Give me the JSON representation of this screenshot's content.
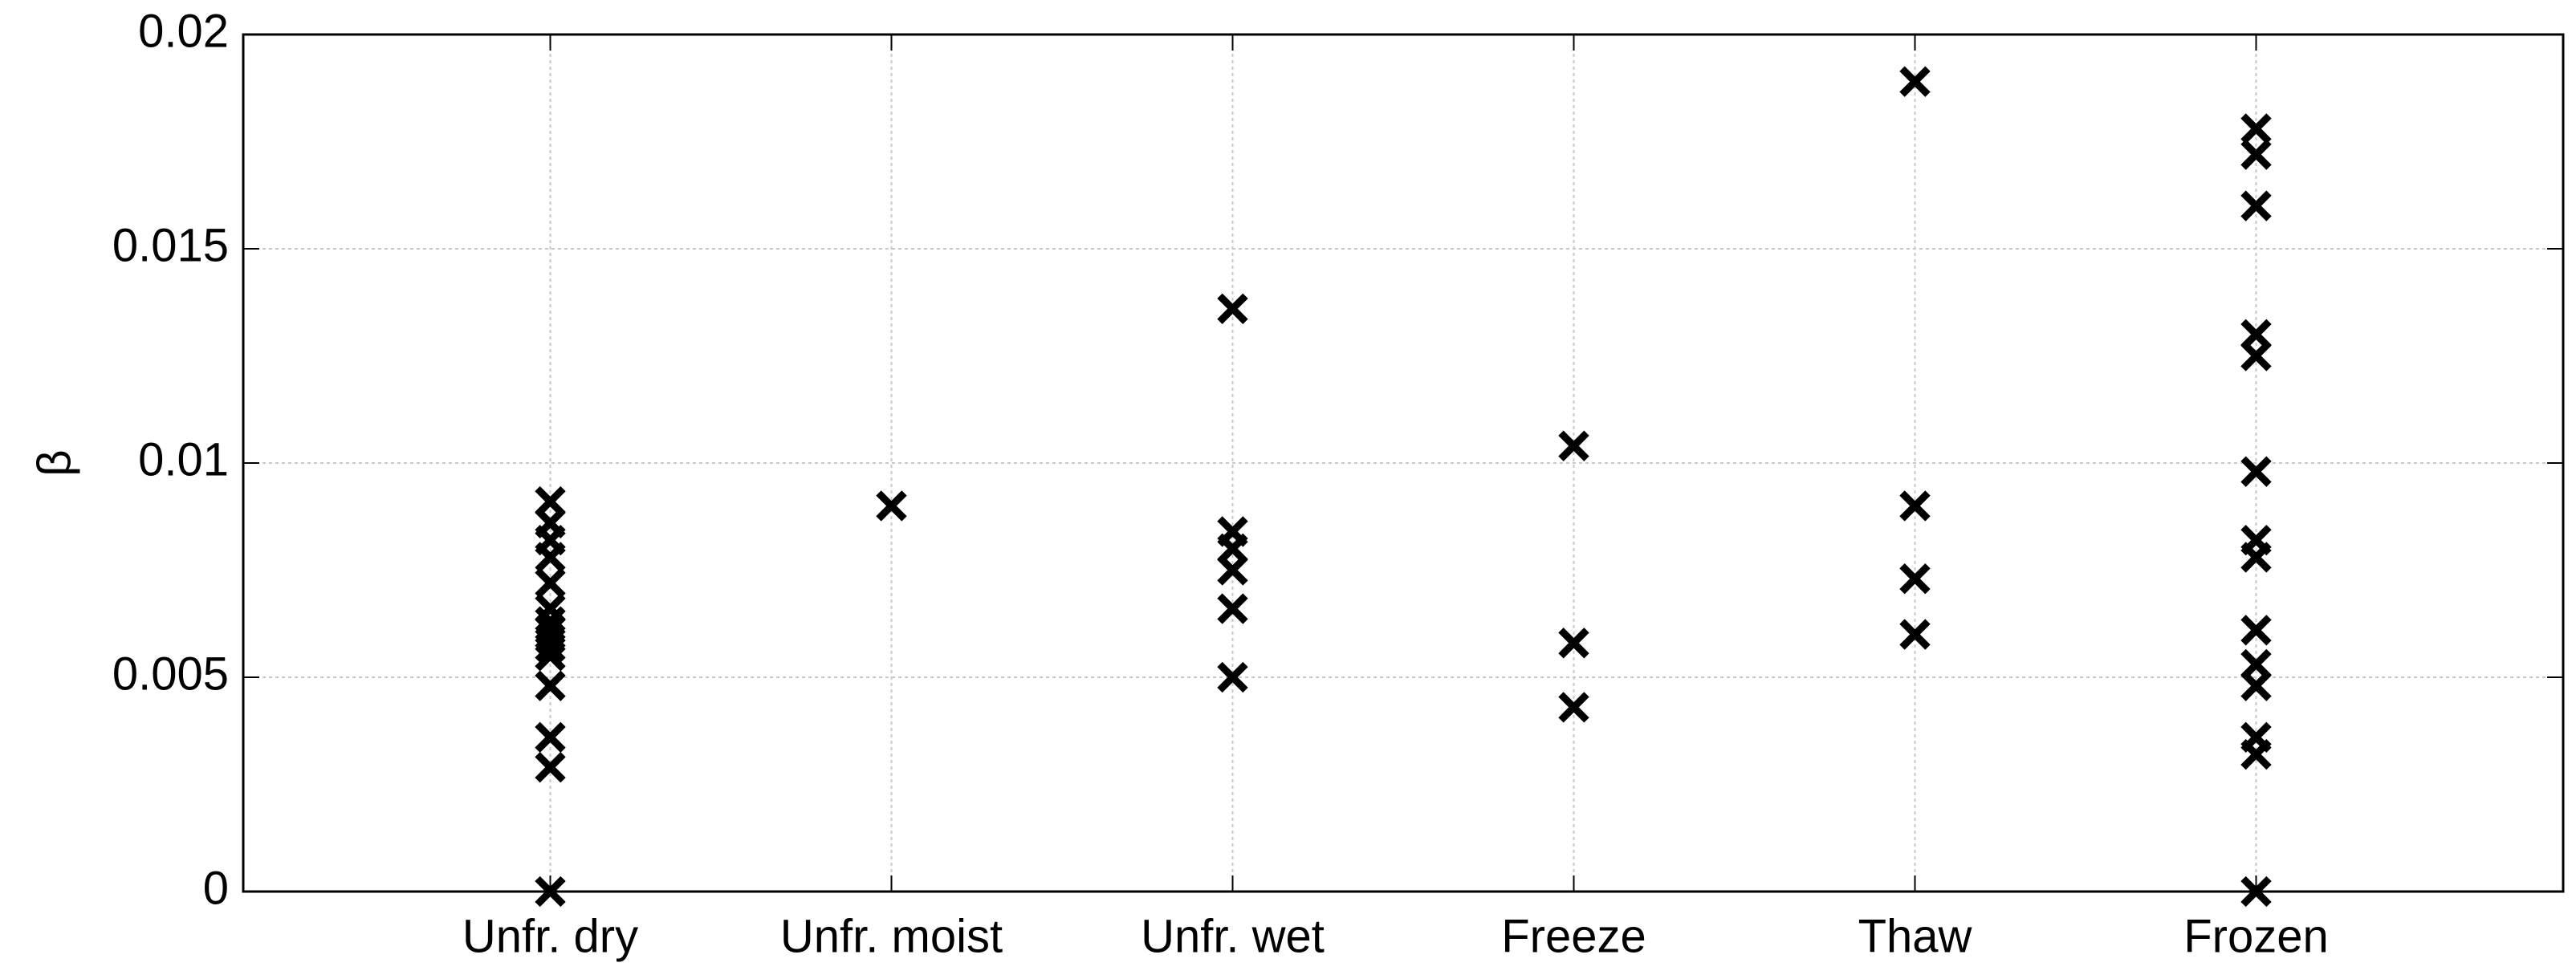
{
  "chart_data": {
    "type": "scatter",
    "ylabel": "β",
    "categories": [
      "Unfr. dry",
      "Unfr. moist",
      "Unfr. wet",
      "Freeze",
      "Thaw",
      "Frozen"
    ],
    "values": [
      [
        0.0091,
        0.0086,
        0.0082,
        0.0078,
        0.0072,
        0.0066,
        0.0063,
        0.0061,
        0.0059,
        0.0057,
        0.0055,
        0.0048,
        0.0036,
        0.0029,
        0
      ],
      [
        0.009
      ],
      [
        0.0136,
        0.0084,
        0.008,
        0.0075,
        0.0066,
        0.005
      ],
      [
        0.0104,
        0.0058,
        0.0043
      ],
      [
        0.0189,
        0.009,
        0.0073,
        0.006
      ],
      [
        0.0178,
        0.0172,
        0.016,
        0.013,
        0.0125,
        0.0098,
        0.0082,
        0.0078,
        0.0061,
        0.0053,
        0.0048,
        0.0036,
        0.0032,
        0
      ]
    ],
    "color": "#000000",
    "marker": "x",
    "ylim": [
      0,
      0.02
    ],
    "yticks": [
      0,
      0.005,
      0.01,
      0.015,
      0.02
    ],
    "grid": true
  }
}
